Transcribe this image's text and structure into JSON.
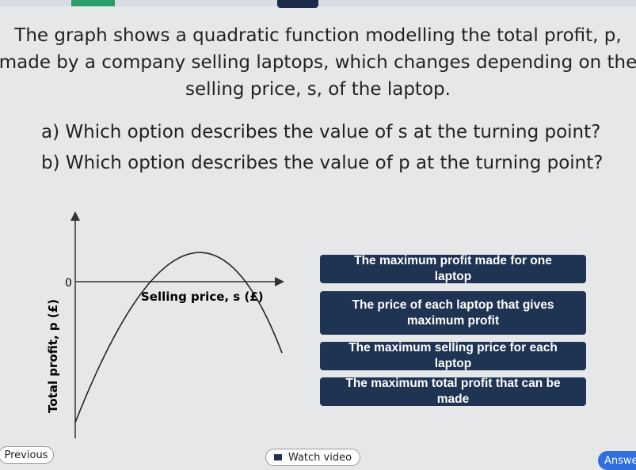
{
  "question": {
    "text": "The graph shows a quadratic function modelling the total profit, p, made by a company selling laptops, which changes depending on the selling price, s, of the laptop."
  },
  "parts": [
    "a) Which option describes the value of s at the turning point?",
    "b) Which option describes the value of p at the turning point?"
  ],
  "graph": {
    "origin_label": "0",
    "x_axis_label": "Selling price, s (£)",
    "y_axis_label": "Total profit, p (£)"
  },
  "options": [
    "The maximum profit made for one laptop",
    "The price of each laptop that gives maximum profit",
    "The maximum selling price for each laptop",
    "The maximum total profit that can be made"
  ],
  "nav": {
    "previous": "Previous",
    "watch_video": "Watch video",
    "answer": "Answer"
  }
}
